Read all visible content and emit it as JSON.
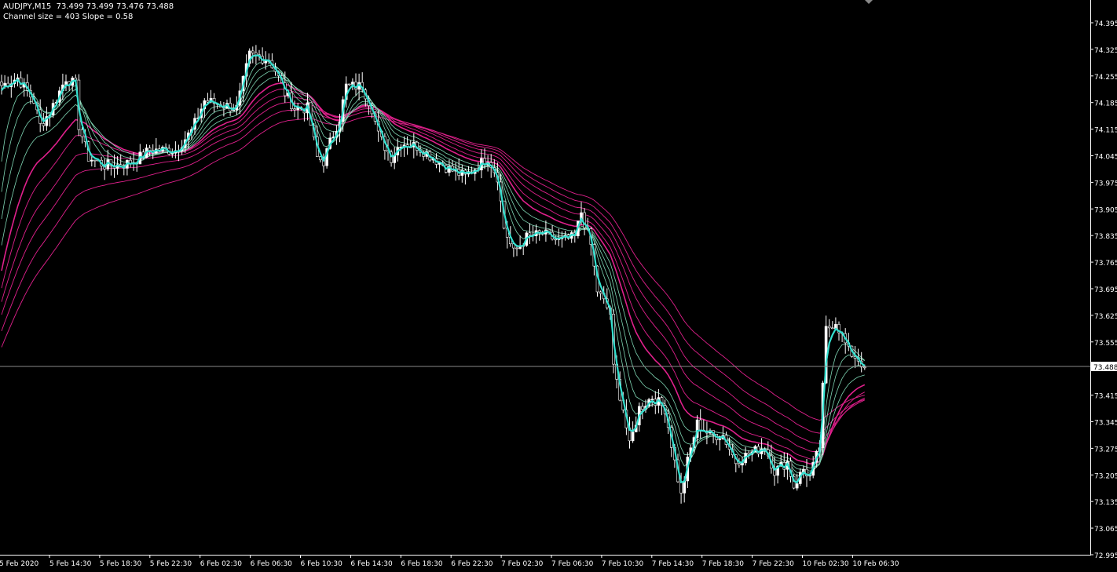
{
  "header": {
    "symbol_line": "AUDJPY,M15  73.499 73.499 73.476 73.488",
    "indicator_line": "Channel size = 403 Slope = 0.58"
  },
  "chart_data": {
    "type": "candlestick",
    "symbol": "AUDJPY",
    "timeframe": "M15",
    "last_ohlc": {
      "open": 73.499,
      "high": 73.499,
      "low": 73.476,
      "close": 73.488
    },
    "current_price": "73.488",
    "ylim": [
      72.995,
      74.43
    ],
    "y_ticks": [
      "74.395",
      "74.325",
      "74.255",
      "74.185",
      "74.115",
      "74.045",
      "73.975",
      "73.905",
      "73.835",
      "73.765",
      "73.695",
      "73.625",
      "73.555",
      "73.415",
      "73.345",
      "73.275",
      "73.205",
      "73.135",
      "73.065",
      "72.995"
    ],
    "x_ticks": [
      "5 Feb 2020",
      "5 Feb 14:30",
      "5 Feb 18:30",
      "5 Feb 22:30",
      "6 Feb 02:30",
      "6 Feb 06:30",
      "6 Feb 10:30",
      "6 Feb 14:30",
      "6 Feb 18:30",
      "6 Feb 22:30",
      "7 Feb 02:30",
      "7 Feb 06:30",
      "7 Feb 10:30",
      "7 Feb 14:30",
      "7 Feb 18:30",
      "7 Feb 22:30",
      "10 Feb 02:30",
      "10 Feb 06:30"
    ],
    "bars_per_x_tick": 16,
    "close_path": [
      [
        0,
        74.23
      ],
      [
        5,
        74.25
      ],
      [
        10,
        74.19
      ],
      [
        12,
        74.125
      ],
      [
        15,
        74.16
      ],
      [
        20,
        74.25
      ],
      [
        23,
        74.23
      ],
      [
        24,
        74.125
      ],
      [
        27,
        74.04
      ],
      [
        32,
        74.02
      ],
      [
        37,
        74.02
      ],
      [
        41,
        74.03
      ],
      [
        46,
        74.06
      ],
      [
        54,
        74.06
      ],
      [
        59,
        74.11
      ],
      [
        63,
        74.19
      ],
      [
        68,
        74.18
      ],
      [
        73,
        74.17
      ],
      [
        77,
        74.31
      ],
      [
        83,
        74.3
      ],
      [
        85,
        74.27
      ],
      [
        88,
        74.21
      ],
      [
        91,
        74.17
      ],
      [
        95,
        74.17
      ],
      [
        98,
        74.04
      ],
      [
        100,
        74.03
      ],
      [
        102,
        74.08
      ],
      [
        105,
        74.145
      ],
      [
        107,
        74.228
      ],
      [
        112,
        74.228
      ],
      [
        115,
        74.17
      ],
      [
        117,
        74.1
      ],
      [
        121,
        74.04
      ],
      [
        124,
        74.08
      ],
      [
        129,
        74.07
      ],
      [
        134,
        74.04
      ],
      [
        139,
        74.01
      ],
      [
        144,
        73.99
      ],
      [
        148,
        74.02
      ],
      [
        151,
        74.04
      ],
      [
        154,
        73.99
      ],
      [
        156,
        73.856
      ],
      [
        159,
        73.79
      ],
      [
        163,
        73.83
      ],
      [
        168,
        73.84
      ],
      [
        173,
        73.82
      ],
      [
        178,
        73.83
      ],
      [
        180,
        73.897
      ],
      [
        183,
        73.81
      ],
      [
        185,
        73.69
      ],
      [
        189,
        73.63
      ],
      [
        190,
        73.485
      ],
      [
        193,
        73.38
      ],
      [
        195,
        73.28
      ],
      [
        198,
        73.38
      ],
      [
        202,
        73.41
      ],
      [
        206,
        73.38
      ],
      [
        209,
        73.24
      ],
      [
        211,
        73.15
      ],
      [
        213,
        73.24
      ],
      [
        216,
        73.34
      ],
      [
        220,
        73.31
      ],
      [
        224,
        73.31
      ],
      [
        228,
        73.24
      ],
      [
        232,
        73.26
      ],
      [
        237,
        73.28
      ],
      [
        240,
        73.215
      ],
      [
        244,
        73.24
      ],
      [
        246,
        73.175
      ],
      [
        249,
        73.22
      ],
      [
        251,
        73.2
      ],
      [
        254,
        73.28
      ],
      [
        256,
        73.587
      ],
      [
        259,
        73.61
      ],
      [
        261,
        73.57
      ],
      [
        263,
        73.53
      ],
      [
        266,
        73.51
      ],
      [
        268,
        73.488
      ]
    ],
    "moving_averages": {
      "fast_color": "#33e0d0",
      "mid_color": "#7fd6b4",
      "slow_color": "#e0208c"
    },
    "grid": false
  }
}
